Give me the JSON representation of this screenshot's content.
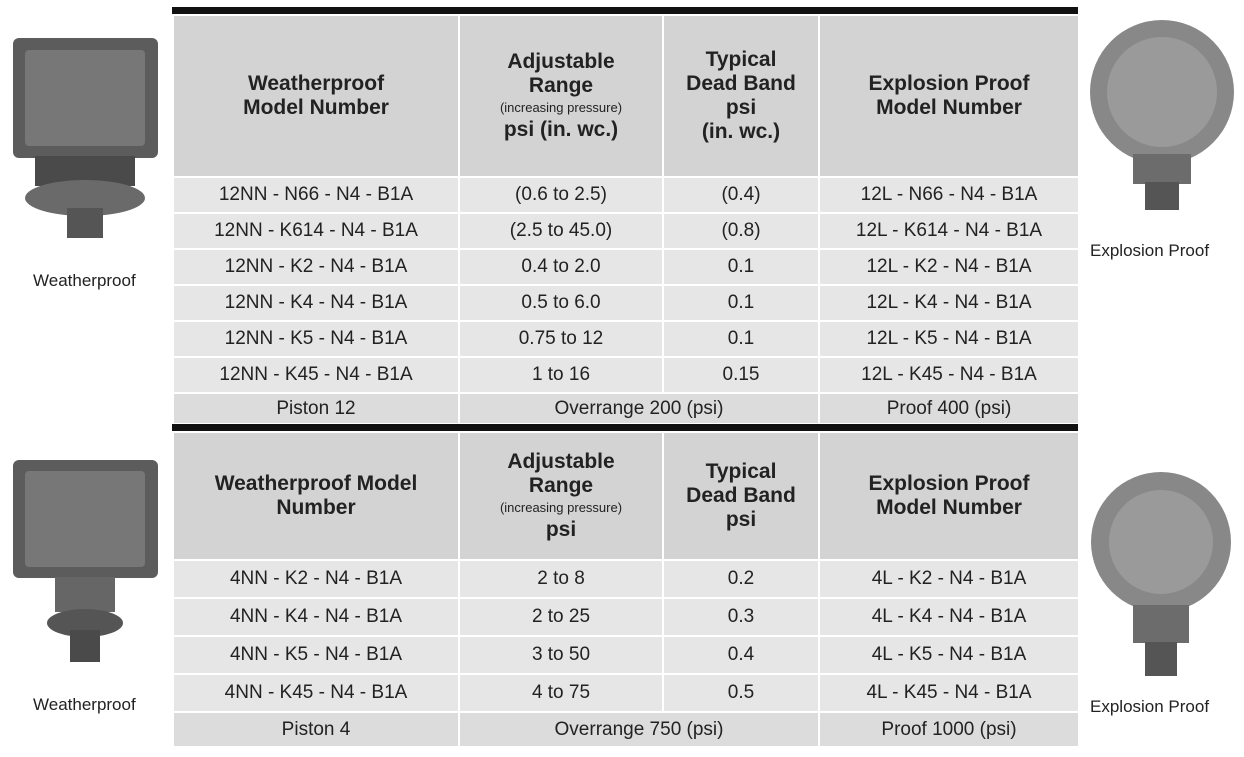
{
  "tables": [
    {
      "caption_left": "Weatherproof",
      "caption_right": "Explosion Proof",
      "headers": [
        {
          "lines": [
            "Weatherproof",
            "Model Number"
          ]
        },
        {
          "lines": [
            "Adjustable",
            "Range"
          ],
          "note": "(increasing pressure)",
          "unit": "psi (in. wc.)"
        },
        {
          "lines": [
            "Typical",
            "Dead Band",
            "psi",
            "(in. wc.)"
          ]
        },
        {
          "lines": [
            "Explosion Proof",
            "Model Number"
          ]
        }
      ],
      "rows": [
        [
          "12NN - N66 - N4 - B1A",
          "(0.6 to 2.5)",
          "(0.4)",
          "12L - N66 - N4 - B1A"
        ],
        [
          "12NN - K614 - N4 - B1A",
          "(2.5 to 45.0)",
          "(0.8)",
          "12L - K614 - N4 - B1A"
        ],
        [
          "12NN - K2 - N4 - B1A",
          "0.4 to 2.0",
          "0.1",
          "12L - K2 - N4 - B1A"
        ],
        [
          "12NN - K4 - N4 - B1A",
          "0.5 to 6.0",
          "0.1",
          "12L - K4 - N4 - B1A"
        ],
        [
          "12NN - K5 - N4 - B1A",
          "0.75 to 12",
          "0.1",
          "12L - K5 - N4 - B1A"
        ],
        [
          "12NN - K45 - N4 - B1A",
          "1 to 16",
          "0.15",
          "12L - K45 - N4 - B1A"
        ]
      ],
      "footer": [
        "Piston 12",
        "Overrange 200 (psi)",
        "Proof 400 (psi)"
      ]
    },
    {
      "caption_left": "Weatherproof",
      "caption_right": "Explosion Proof",
      "headers": [
        {
          "lines": [
            "Weatherproof Model",
            "Number"
          ]
        },
        {
          "lines": [
            "Adjustable",
            "Range"
          ],
          "note": "(increasing pressure)",
          "unit": "psi"
        },
        {
          "lines": [
            "Typical",
            "Dead Band",
            "psi"
          ]
        },
        {
          "lines": [
            "Explosion Proof",
            "Model Number"
          ]
        }
      ],
      "rows": [
        [
          "4NN - K2 - N4 - B1A",
          "2 to 8",
          "0.2",
          "4L - K2 - N4 - B1A"
        ],
        [
          "4NN - K4 - N4 - B1A",
          "2 to 25",
          "0.3",
          "4L - K4 - N4 - B1A"
        ],
        [
          "4NN - K5 - N4 - B1A",
          "3 to 50",
          "0.4",
          "4L - K5 - N4 - B1A"
        ],
        [
          "4NN - K45 - N4 - B1A",
          "4 to 75",
          "0.5",
          "4L - K45 - N4 - B1A"
        ]
      ],
      "footer": [
        "Piston 4",
        "Overrange 750 (psi)",
        "Proof 1000 (psi)"
      ]
    }
  ]
}
